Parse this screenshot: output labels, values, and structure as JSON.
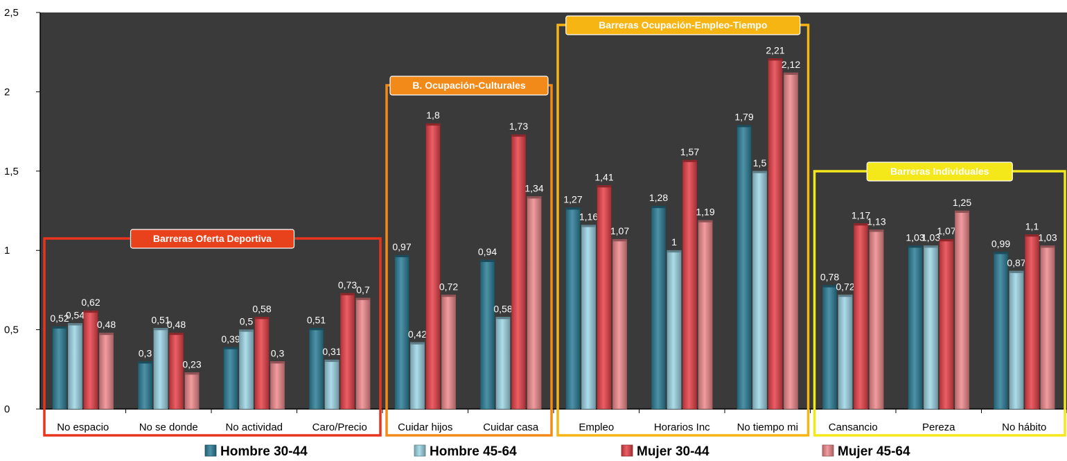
{
  "chart_data": {
    "type": "bar",
    "y_ticks": [
      "0",
      "0,5",
      "1",
      "1,5",
      "2",
      "2,5"
    ],
    "ylim": [
      0,
      2.5
    ],
    "grid": false,
    "legend_position": "bottom",
    "categories": [
      "No espacio",
      "No se donde",
      "No actividad",
      "Caro/Precio",
      "Cuidar hijos",
      "Cuidar casa",
      "Empleo",
      "Horarios Inc",
      "No tiempo mi",
      "Cansancio",
      "Pereza",
      "No hábito"
    ],
    "series": [
      {
        "name": "Hombre 30-44",
        "color": "#2e7f98",
        "values": [
          0.52,
          0.3,
          0.39,
          0.51,
          0.97,
          0.94,
          1.27,
          1.28,
          1.79,
          0.78,
          1.03,
          0.99
        ],
        "labels": [
          "0,52",
          "0,3",
          "0,39",
          "0,51",
          "0,97",
          "0,94",
          "1,27",
          "1,28",
          "1,79",
          "0,78",
          "1,03",
          "0,99"
        ]
      },
      {
        "name": "Hombre 45-64",
        "color": "#9fd6e6",
        "values": [
          0.54,
          0.51,
          0.5,
          0.31,
          0.42,
          0.58,
          1.16,
          1.0,
          1.5,
          0.72,
          1.03,
          0.87
        ],
        "labels": [
          "0,54",
          "0,51",
          "0,5",
          "0,31",
          "0,42",
          "0,58",
          "1,16",
          "1",
          "1,5",
          "0,72",
          "1,03",
          "0,87"
        ]
      },
      {
        "name": "Mujer 30-44",
        "color": "#e8434a",
        "values": [
          0.62,
          0.48,
          0.58,
          0.73,
          1.8,
          1.73,
          1.41,
          1.57,
          2.21,
          1.17,
          1.07,
          1.1
        ],
        "labels": [
          "0,62",
          "0,48",
          "0,58",
          "0,73",
          "1,8",
          "1,73",
          "1,41",
          "1,57",
          "2,21",
          "1,17",
          "1,07",
          "1,1"
        ]
      },
      {
        "name": "Mujer 45-64",
        "color": "#f08a8e",
        "values": [
          0.48,
          0.23,
          0.3,
          0.7,
          0.72,
          1.34,
          1.07,
          1.19,
          2.12,
          1.13,
          1.25,
          1.03
        ],
        "labels": [
          "0,48",
          "0,23",
          "0,3",
          "0,7",
          "0,72",
          "1,34",
          "1,07",
          "1,19",
          "2,12",
          "1,13",
          "1,25",
          "1,03"
        ]
      }
    ],
    "groups": [
      {
        "label": "Barreras Oferta Deportiva",
        "start": 0,
        "end": 3,
        "color": "#e8341f",
        "label_bg": "#e8421c"
      },
      {
        "label": "B. Ocupación-Culturales",
        "start": 4,
        "end": 5,
        "color": "#f28a1a",
        "label_bg": "#f28a1a"
      },
      {
        "label": "Barreras Ocupación-Empleo-Tiempo",
        "start": 6,
        "end": 8,
        "color": "#f7b514",
        "label_bg": "#f7b514"
      },
      {
        "label": "Barreras Individuales",
        "start": 9,
        "end": 11,
        "color": "#f4e81a",
        "label_bg": "#f4e81a"
      }
    ]
  },
  "colors": {
    "plot_background": "#3a3a3a",
    "axis": "#000000"
  }
}
